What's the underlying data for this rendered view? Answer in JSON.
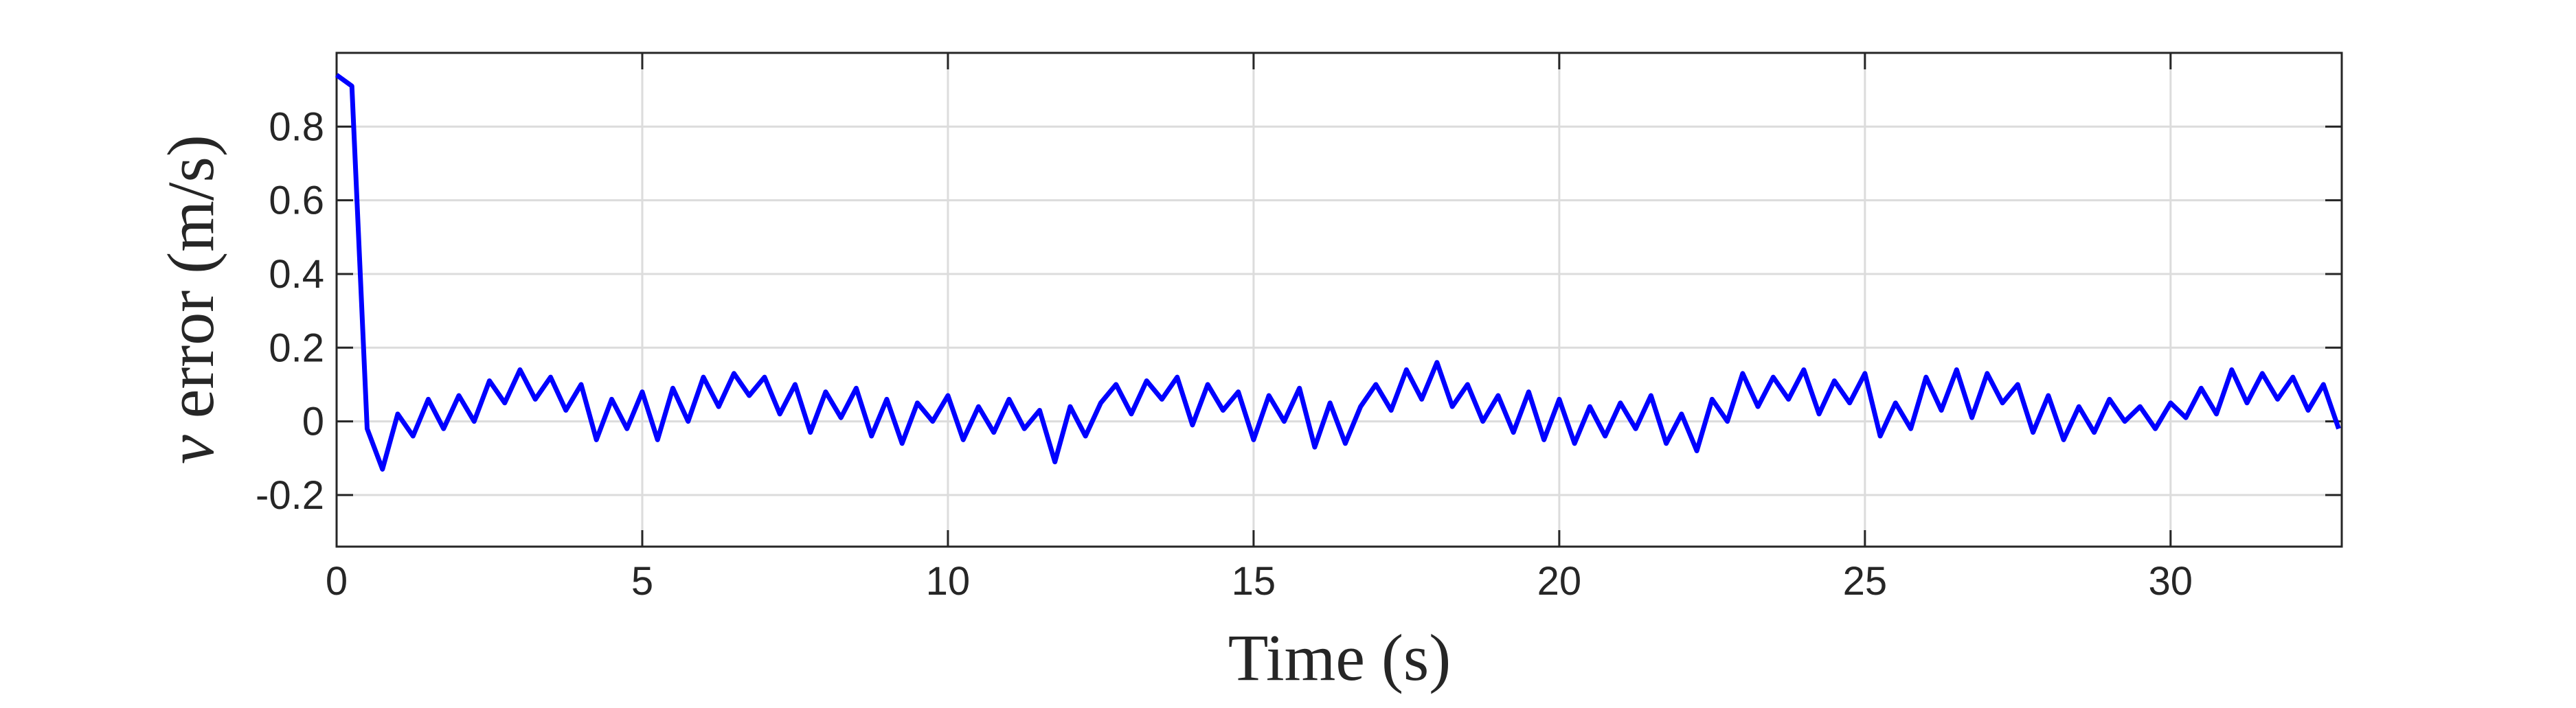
{
  "chart_data": {
    "type": "line",
    "xlabel": "Time (s)",
    "ylabel_var": "v",
    "ylabel": "error (m/s)",
    "xlim": [
      0,
      32.8
    ],
    "ylim": [
      -0.34,
      1
    ],
    "xticks": [
      0,
      5,
      10,
      15,
      20,
      25,
      30
    ],
    "yticks": [
      -0.2,
      0,
      0.2,
      0.4,
      0.6,
      0.8
    ],
    "grid": true,
    "x": [
      0,
      0.25,
      0.5,
      0.75,
      1,
      1.25,
      1.5,
      1.75,
      2,
      2.25,
      2.5,
      2.75,
      3,
      3.25,
      3.5,
      3.75,
      4,
      4.25,
      4.5,
      4.75,
      5,
      5.25,
      5.5,
      5.75,
      6,
      6.25,
      6.5,
      6.75,
      7,
      7.25,
      7.5,
      7.75,
      8,
      8.25,
      8.5,
      8.75,
      9,
      9.25,
      9.5,
      9.75,
      10,
      10.25,
      10.5,
      10.75,
      11,
      11.25,
      11.5,
      11.75,
      12,
      12.25,
      12.5,
      12.75,
      13,
      13.25,
      13.5,
      13.75,
      14,
      14.25,
      14.5,
      14.75,
      15,
      15.25,
      15.5,
      15.75,
      16,
      16.25,
      16.5,
      16.75,
      17,
      17.25,
      17.5,
      17.75,
      18,
      18.25,
      18.5,
      18.75,
      19,
      19.25,
      19.5,
      19.75,
      20,
      20.25,
      20.5,
      20.75,
      21,
      21.25,
      21.5,
      21.75,
      22,
      22.25,
      22.5,
      22.75,
      23,
      23.25,
      23.5,
      23.75,
      24,
      24.25,
      24.5,
      24.75,
      25,
      25.25,
      25.5,
      25.75,
      26,
      26.25,
      26.5,
      26.75,
      27,
      27.25,
      27.5,
      27.75,
      28,
      28.25,
      28.5,
      28.75,
      29,
      29.25,
      29.5,
      29.75,
      30,
      30.25,
      30.5,
      30.75,
      31,
      31.25,
      31.5,
      31.75,
      32,
      32.25,
      32.5,
      32.75
    ],
    "series": [
      {
        "color": "#0000ff",
        "values": [
          0.94,
          0.91,
          -0.02,
          -0.13,
          0.02,
          -0.04,
          0.06,
          -0.02,
          0.07,
          0.0,
          0.11,
          0.05,
          0.14,
          0.06,
          0.12,
          0.03,
          0.1,
          -0.05,
          0.06,
          -0.02,
          0.08,
          -0.05,
          0.09,
          0.0,
          0.12,
          0.04,
          0.13,
          0.07,
          0.12,
          0.02,
          0.1,
          -0.03,
          0.08,
          0.01,
          0.09,
          -0.04,
          0.06,
          -0.06,
          0.05,
          0.0,
          0.07,
          -0.05,
          0.04,
          -0.03,
          0.06,
          -0.02,
          0.03,
          -0.11,
          0.04,
          -0.04,
          0.05,
          0.1,
          0.02,
          0.11,
          0.06,
          0.12,
          -0.01,
          0.1,
          0.03,
          0.08,
          -0.05,
          0.07,
          0.0,
          0.09,
          -0.07,
          0.05,
          -0.06,
          0.04,
          0.1,
          0.03,
          0.14,
          0.06,
          0.16,
          0.04,
          0.1,
          0.0,
          0.07,
          -0.03,
          0.08,
          -0.05,
          0.06,
          -0.06,
          0.04,
          -0.04,
          0.05,
          -0.02,
          0.07,
          -0.06,
          0.02,
          -0.08,
          0.06,
          0.0,
          0.13,
          0.04,
          0.12,
          0.06,
          0.14,
          0.02,
          0.11,
          0.05,
          0.13,
          -0.04,
          0.05,
          -0.02,
          0.12,
          0.03,
          0.14,
          0.01,
          0.13,
          0.05,
          0.1,
          -0.03,
          0.07,
          -0.05,
          0.04,
          -0.03,
          0.06,
          0.0,
          0.04,
          -0.02,
          0.05,
          0.01,
          0.09,
          0.02,
          0.14,
          0.05,
          0.13,
          0.06,
          0.12,
          0.03,
          0.1,
          -0.02
        ]
      }
    ]
  }
}
